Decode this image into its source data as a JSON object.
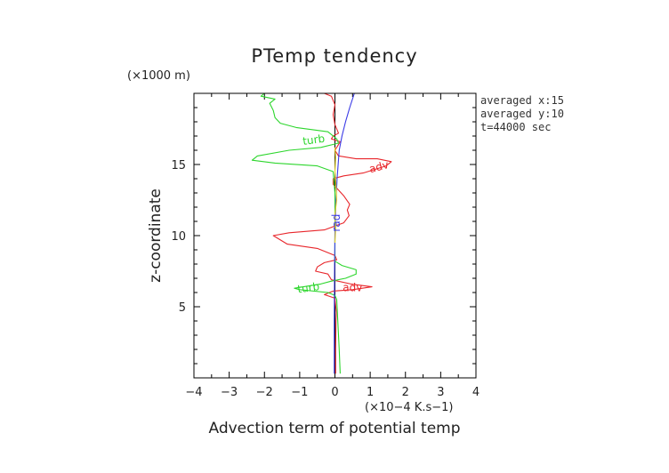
{
  "chart_data": {
    "type": "line",
    "title": "PTemp tendency",
    "xlabel": "Advection term of potential temp",
    "ylabel": "z-coordinate",
    "x_unit": "(×10−4 K.s−1)",
    "y_unit": "(×1000 m)",
    "xlim": [
      -4,
      4
    ],
    "ylim": [
      0,
      20
    ],
    "x_ticks": [
      -4,
      -3,
      -2,
      -1,
      0,
      1,
      2,
      3,
      4
    ],
    "y_ticks": [
      5,
      10,
      15
    ],
    "info": [
      "averaged  x:15",
      "averaged  y:10",
      "t=44000 sec"
    ],
    "colors": {
      "adv": "#e8262b",
      "turb": "#2dd62d",
      "rad": "#3a3ae6",
      "other": "#e6d21e"
    },
    "series": [
      {
        "name": "adv",
        "color": "#e8262b",
        "labels": [
          {
            "text": "adv",
            "x": 1.25,
            "y": 14.8,
            "angle": -15
          },
          {
            "text": "adv",
            "x": 0.5,
            "y": 6.3,
            "angle": 0
          }
        ],
        "points": [
          [
            0.02,
            0.3
          ],
          [
            0.02,
            2
          ],
          [
            0.03,
            4
          ],
          [
            0.04,
            4.6
          ],
          [
            0.0,
            5.6
          ],
          [
            -0.3,
            5.85
          ],
          [
            -0.05,
            6.1
          ],
          [
            0.5,
            6.2
          ],
          [
            1.05,
            6.4
          ],
          [
            0.45,
            6.6
          ],
          [
            -0.1,
            6.9
          ],
          [
            -0.2,
            7.3
          ],
          [
            -0.55,
            7.5
          ],
          [
            -0.5,
            7.8
          ],
          [
            -0.3,
            8.1
          ],
          [
            0.05,
            8.3
          ],
          [
            0.0,
            8.6
          ],
          [
            -0.5,
            9.1
          ],
          [
            -1.35,
            9.4
          ],
          [
            -1.75,
            10.0
          ],
          [
            -1.3,
            10.2
          ],
          [
            -0.3,
            10.4
          ],
          [
            0.25,
            10.9
          ],
          [
            0.4,
            11.4
          ],
          [
            0.35,
            11.8
          ],
          [
            0.42,
            12.2
          ],
          [
            0.25,
            12.8
          ],
          [
            0.1,
            13.2
          ],
          [
            -0.05,
            13.6
          ],
          [
            -0.05,
            14.0
          ],
          [
            0.25,
            14.2
          ],
          [
            0.8,
            14.4
          ],
          [
            1.45,
            14.9
          ],
          [
            1.6,
            15.2
          ],
          [
            1.2,
            15.4
          ],
          [
            0.6,
            15.4
          ],
          [
            0.1,
            15.6
          ],
          [
            0.0,
            16.0
          ],
          [
            0.1,
            16.4
          ],
          [
            0.15,
            16.6
          ],
          [
            -0.1,
            16.8
          ],
          [
            -0.05,
            17.0
          ],
          [
            0.1,
            17.2
          ],
          [
            0.0,
            17.8
          ],
          [
            -0.05,
            18.5
          ],
          [
            0.0,
            19.2
          ],
          [
            -0.1,
            19.8
          ],
          [
            -0.3,
            20.0
          ]
        ]
      },
      {
        "name": "turb",
        "color": "#2dd62d",
        "labels": [
          {
            "text": "turb",
            "x": -0.6,
            "y": 16.7,
            "angle": -8
          },
          {
            "text": "turb",
            "x": -0.75,
            "y": 6.3,
            "angle": -8
          }
        ],
        "points": [
          [
            0.15,
            0.3
          ],
          [
            0.12,
            2
          ],
          [
            0.08,
            4
          ],
          [
            0.05,
            5.5
          ],
          [
            0.0,
            5.8
          ],
          [
            -0.2,
            6.0
          ],
          [
            -1.0,
            6.2
          ],
          [
            -1.15,
            6.3
          ],
          [
            -0.4,
            6.6
          ],
          [
            -0.1,
            6.8
          ],
          [
            0.3,
            7.0
          ],
          [
            0.6,
            7.3
          ],
          [
            0.6,
            7.6
          ],
          [
            0.2,
            7.9
          ],
          [
            0.0,
            8.2
          ],
          [
            0.0,
            10.0
          ],
          [
            0.0,
            13.0
          ],
          [
            -0.05,
            14.5
          ],
          [
            -0.5,
            14.9
          ],
          [
            -1.7,
            15.1
          ],
          [
            -2.35,
            15.3
          ],
          [
            -2.2,
            15.6
          ],
          [
            -1.3,
            16.0
          ],
          [
            -0.4,
            16.2
          ],
          [
            0.1,
            16.5
          ],
          [
            0.05,
            16.8
          ],
          [
            -0.2,
            17.3
          ],
          [
            -1.1,
            17.6
          ],
          [
            -1.55,
            17.9
          ],
          [
            -1.7,
            18.3
          ],
          [
            -1.75,
            18.8
          ],
          [
            -1.85,
            19.3
          ],
          [
            -1.7,
            19.6
          ],
          [
            -2.1,
            19.8
          ],
          [
            -2.0,
            20.0
          ]
        ]
      },
      {
        "name": "rad",
        "color": "#3a3ae6",
        "labels": [
          {
            "text": "rad",
            "x": 0.05,
            "y": 10.9,
            "angle": -90
          }
        ],
        "points": [
          [
            -0.02,
            0.3
          ],
          [
            -0.02,
            4
          ],
          [
            -0.01,
            8
          ],
          [
            0.0,
            10
          ],
          [
            0.02,
            12
          ],
          [
            0.06,
            14
          ],
          [
            0.12,
            16
          ],
          [
            0.2,
            17
          ],
          [
            0.3,
            18
          ],
          [
            0.42,
            19
          ],
          [
            0.55,
            20
          ]
        ]
      },
      {
        "name": "",
        "color": "#e6d21e",
        "labels": [],
        "points": [
          [
            0.0,
            9.5
          ],
          [
            0.02,
            10.5
          ],
          [
            0.0,
            11.5
          ],
          [
            0.05,
            12.5
          ],
          [
            0.03,
            13.5
          ],
          [
            0.0,
            14.5
          ],
          [
            0.02,
            15.5
          ],
          [
            0.0,
            16.2
          ]
        ]
      }
    ]
  }
}
